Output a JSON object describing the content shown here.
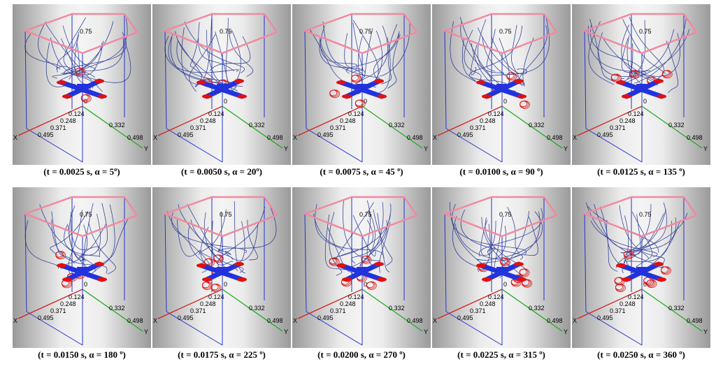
{
  "axes": {
    "x_label": "X",
    "y_label": "Y",
    "x_ticks": [
      "0.124",
      "0.248",
      "0.371",
      "0.495"
    ],
    "y_ticks": [
      "0.332",
      "0.498"
    ],
    "origin_label": "0",
    "z_label": "0.75"
  },
  "colors": {
    "streamline": "#1a2a8c",
    "vortex": "#d81818",
    "drone_body": "#2233dd",
    "rotor": "#e01010",
    "top_frame": "#f08aa0",
    "box_edge": "#2233cc",
    "x_axis": "#d22222",
    "y_axis": "#22aa22"
  },
  "panels": [
    {
      "caption": "(t = 0.0025 s, α = 5º)"
    },
    {
      "caption": "(t = 0.0050 s, α = 20º)"
    },
    {
      "caption": "(t = 0.0075 s, α = 45 º)"
    },
    {
      "caption": "(t = 0.0100 s, α = 90 º)"
    },
    {
      "caption": "(t = 0.0125 s, α = 135 º)"
    },
    {
      "caption": "(t = 0.0150 s, α = 180 º)"
    },
    {
      "caption": "(t = 0.0175 s, α = 225 º)"
    },
    {
      "caption": "(t = 0.0200 s, α = 270 º)"
    },
    {
      "caption": "(t = 0.0225 s, α = 315 º)"
    },
    {
      "caption": "(t = 0.0250 s, α = 360 º)"
    }
  ]
}
